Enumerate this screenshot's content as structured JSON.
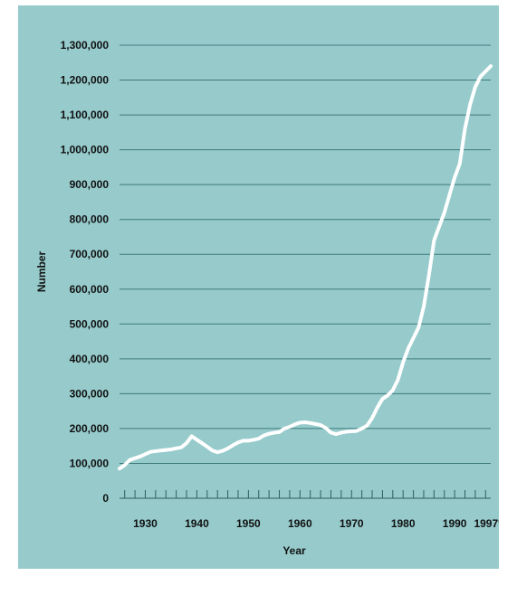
{
  "colors": {
    "panel_background": "#96cacb",
    "line": "#ffffff",
    "grid": "#3f7c7b",
    "axis": "#2f5f5e",
    "text": "#111111"
  },
  "chart_data": {
    "type": "line",
    "xlabel": "Year",
    "ylabel": "Number",
    "xlim": [
      1925,
      1997
    ],
    "ylim": [
      0,
      1300000
    ],
    "grid": true,
    "x_tick_labels": [
      "1930",
      "1940",
      "1950",
      "1960",
      "1970",
      "1980",
      "1990",
      "1997*"
    ],
    "x_tick_values": [
      1930,
      1940,
      1950,
      1960,
      1970,
      1980,
      1990,
      1996.5
    ],
    "y_tick_labels": [
      "0",
      "100,000",
      "200,000",
      "300,000",
      "400,000",
      "500,000",
      "600,000",
      "700,000",
      "800,000",
      "900,000",
      "1,000,000",
      "1,100,000",
      "1,200,000",
      "1,300,000"
    ],
    "y_tick_values": [
      0,
      100000,
      200000,
      300000,
      400000,
      500000,
      600000,
      700000,
      800000,
      900000,
      1000000,
      1100000,
      1200000,
      1300000
    ],
    "series": [
      {
        "x": [
          1925,
          1926,
          1927,
          1929,
          1931,
          1933,
          1935,
          1937,
          1938,
          1939,
          1940,
          1941,
          1942,
          1943,
          1944,
          1945,
          1946,
          1947,
          1948,
          1949,
          1950,
          1951,
          1952,
          1953,
          1954,
          1955,
          1956,
          1957,
          1958,
          1959,
          1960,
          1961,
          1962,
          1963,
          1964,
          1965,
          1966,
          1967,
          1968,
          1969,
          1970,
          1971,
          1972,
          1973,
          1974,
          1975,
          1976,
          1977,
          1978,
          1979,
          1980,
          1981,
          1982,
          1983,
          1984,
          1985,
          1986,
          1987,
          1988,
          1989,
          1990,
          1991,
          1992,
          1993,
          1994,
          1995,
          1996,
          1997
        ],
        "y": [
          85000,
          95000,
          110000,
          120000,
          133000,
          137000,
          140000,
          146000,
          158000,
          178000,
          168000,
          158000,
          148000,
          137000,
          132000,
          136000,
          143000,
          152000,
          160000,
          165000,
          165000,
          168000,
          171000,
          180000,
          185000,
          188000,
          190000,
          200000,
          205000,
          212000,
          217000,
          218000,
          216000,
          213000,
          210000,
          202000,
          188000,
          184000,
          188000,
          191000,
          192000,
          193000,
          200000,
          208000,
          230000,
          260000,
          285000,
          295000,
          310000,
          340000,
          390000,
          430000,
          460000,
          490000,
          550000,
          640000,
          740000,
          780000,
          820000,
          870000,
          920000,
          960000,
          1060000,
          1130000,
          1180000,
          1210000,
          1225000,
          1240000
        ]
      }
    ]
  }
}
